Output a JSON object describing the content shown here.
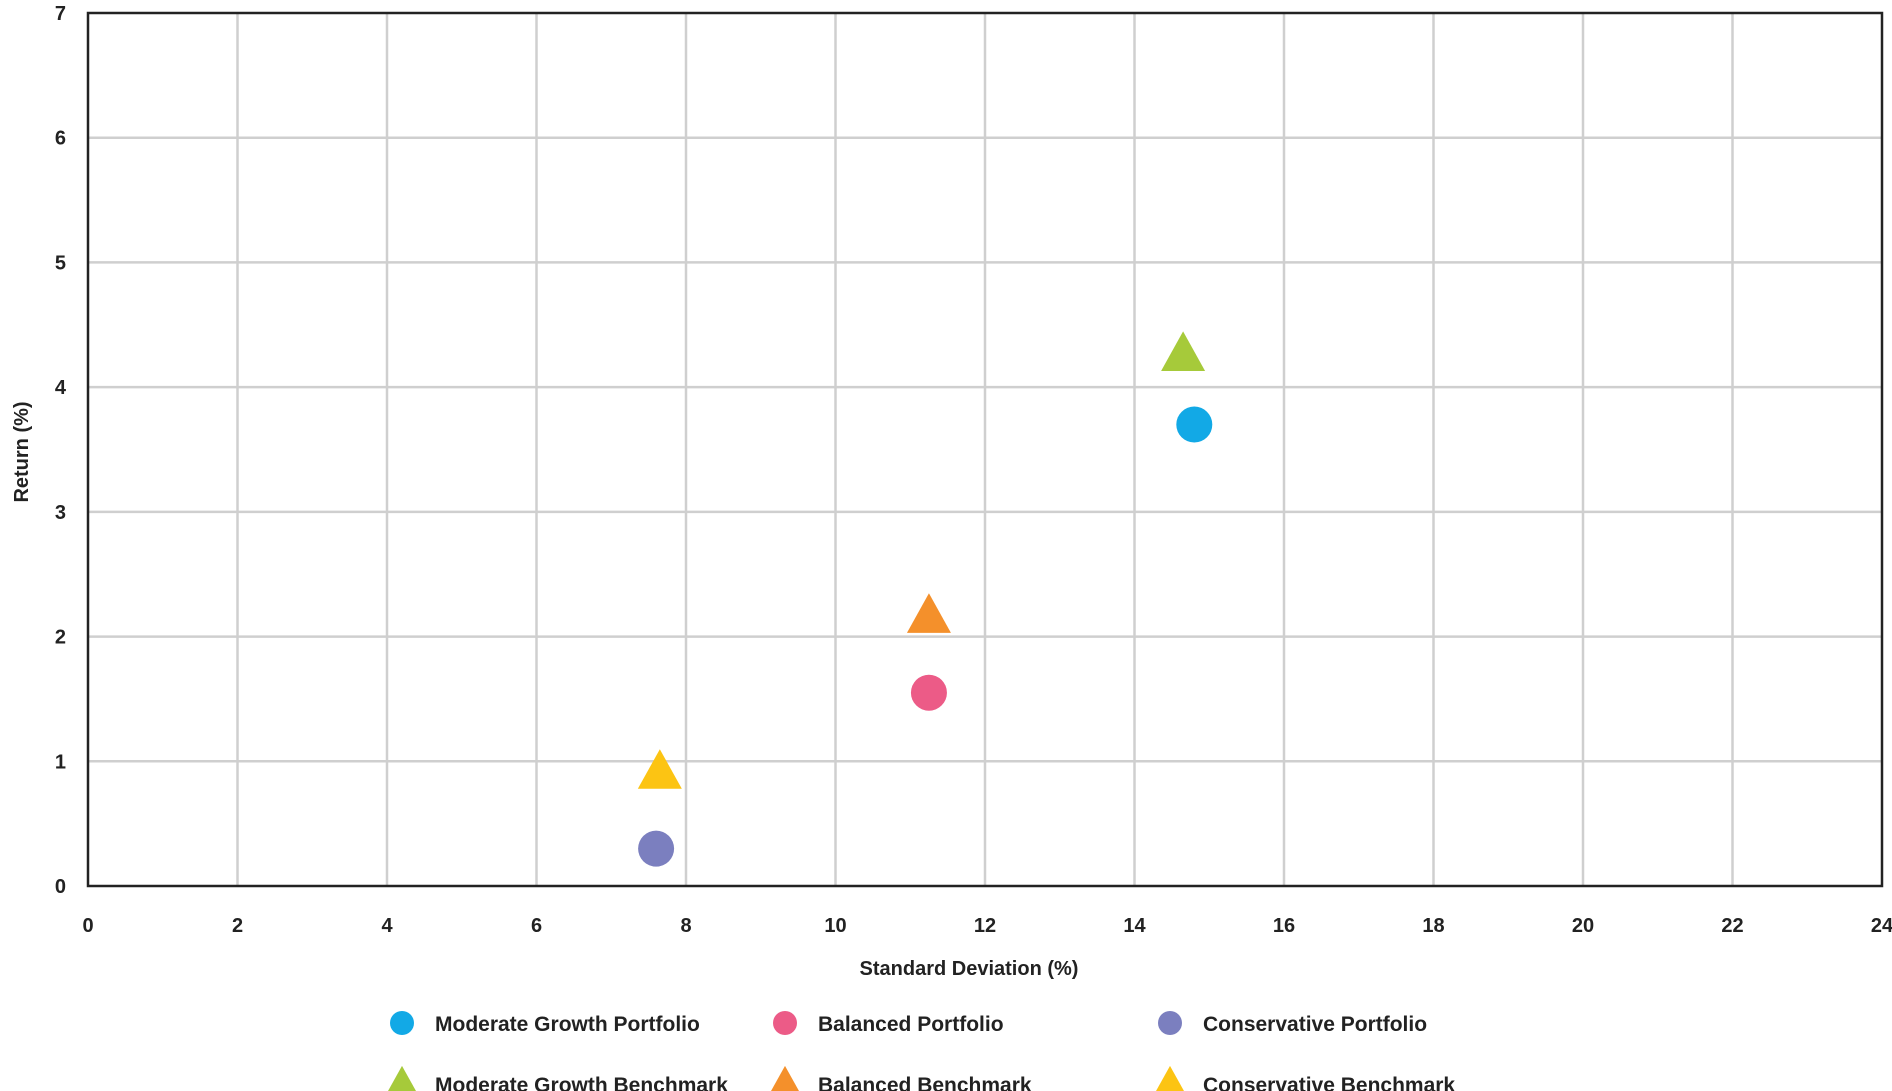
{
  "chart_data": {
    "type": "scatter",
    "xlabel": "Standard Deviation (%)",
    "ylabel": "Return (%)",
    "xlim": [
      0,
      24
    ],
    "ylim": [
      0,
      7
    ],
    "x_ticks": [
      0,
      2,
      4,
      6,
      8,
      10,
      12,
      14,
      16,
      18,
      20,
      22,
      24
    ],
    "y_ticks": [
      0,
      1,
      2,
      3,
      4,
      5,
      6,
      7
    ],
    "grid": true,
    "legend_position": "bottom",
    "series": [
      {
        "name": "Moderate Growth Portfolio",
        "marker": "circle",
        "color": "#12a9e6",
        "points": [
          {
            "x": 14.8,
            "y": 3.7
          }
        ]
      },
      {
        "name": "Balanced Portfolio",
        "marker": "circle",
        "color": "#ec5b87",
        "points": [
          {
            "x": 11.25,
            "y": 1.55
          }
        ]
      },
      {
        "name": "Conservative Portfolio",
        "marker": "circle",
        "color": "#7b7fbf",
        "points": [
          {
            "x": 7.6,
            "y": 0.3
          }
        ]
      },
      {
        "name": "Moderate Growth Benchmark",
        "marker": "triangle",
        "color": "#a6ca3a",
        "points": [
          {
            "x": 14.65,
            "y": 4.25
          }
        ]
      },
      {
        "name": "Balanced Benchmark",
        "marker": "triangle",
        "color": "#f4902b",
        "points": [
          {
            "x": 11.25,
            "y": 2.15
          }
        ]
      },
      {
        "name": "Conservative Benchmark",
        "marker": "triangle",
        "color": "#fcc413",
        "points": [
          {
            "x": 7.65,
            "y": 0.9
          }
        ]
      }
    ]
  }
}
